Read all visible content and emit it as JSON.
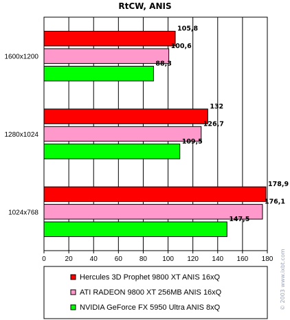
{
  "chart_data": {
    "type": "bar",
    "orientation": "horizontal",
    "title": "RtCW, ANIS",
    "categories": [
      "1600x1200",
      "1280x1024",
      "1024x768"
    ],
    "series": [
      {
        "name": "Hercules 3D Prophet 9800 XT ANIS 16xQ",
        "color": "#ff0000",
        "values": [
          105.8,
          132,
          178.9
        ],
        "labels": [
          "105,8",
          "132",
          "178,9"
        ]
      },
      {
        "name": "ATI RADEON 9800 XT 256MB ANIS 16xQ",
        "color": "#ff99cc",
        "values": [
          100.6,
          126.7,
          176.1
        ],
        "labels": [
          "100,6",
          "126,7",
          "176,1"
        ]
      },
      {
        "name": "NVIDIA GeForce FX 5950 Ultra ANIS 8xQ",
        "color": "#00ff00",
        "values": [
          88.3,
          109.5,
          147.5
        ],
        "labels": [
          "88,3",
          "109,5",
          "147,5"
        ]
      }
    ],
    "xlim": [
      0,
      180
    ],
    "xticks": [
      0,
      20,
      40,
      60,
      80,
      100,
      120,
      140,
      160,
      180
    ],
    "grid": true,
    "legend_position": "bottom"
  },
  "watermark": "© 2003 www.ixbt.com"
}
